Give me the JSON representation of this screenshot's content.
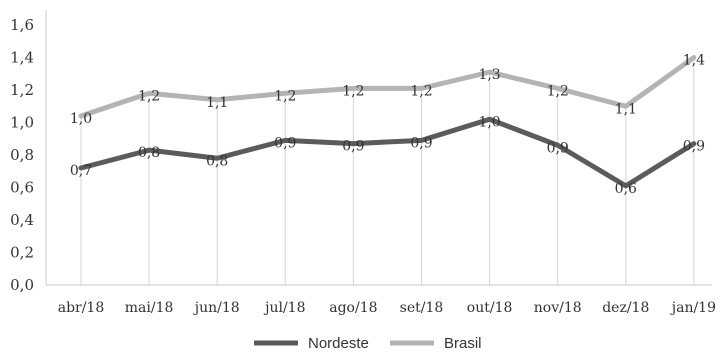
{
  "chart_data": {
    "type": "line",
    "categories": [
      "abr/18",
      "mai/18",
      "jun/18",
      "jul/18",
      "ago/18",
      "set/18",
      "out/18",
      "nov/18",
      "dez/18",
      "jan/19"
    ],
    "series": [
      {
        "name": "Nordeste",
        "color": "#5b5b5b",
        "values": [
          0.72,
          0.83,
          0.78,
          0.89,
          0.87,
          0.89,
          1.02,
          0.86,
          0.61,
          0.87
        ],
        "labels": [
          "0,7",
          "0,8",
          "0,8",
          "0,9",
          "0,9",
          "0,9",
          "1,0",
          "0,9",
          "0,6",
          "0,9"
        ]
      },
      {
        "name": "Brasil",
        "color": "#b4b4b4",
        "values": [
          1.04,
          1.18,
          1.14,
          1.18,
          1.21,
          1.21,
          1.31,
          1.21,
          1.1,
          1.4
        ],
        "labels": [
          "1,0",
          "1,2",
          "1,1",
          "1,2",
          "1,2",
          "1,2",
          "1,3",
          "1,2",
          "1,1",
          "1,4"
        ]
      }
    ],
    "y_ticks": [
      "0,0",
      "0,2",
      "0,4",
      "0,6",
      "0,8",
      "1,0",
      "1,2",
      "1,4",
      "1,6"
    ],
    "ylim": [
      0,
      1.6
    ],
    "grid": "vertical-drop-lines",
    "legend": "bottom-center"
  }
}
